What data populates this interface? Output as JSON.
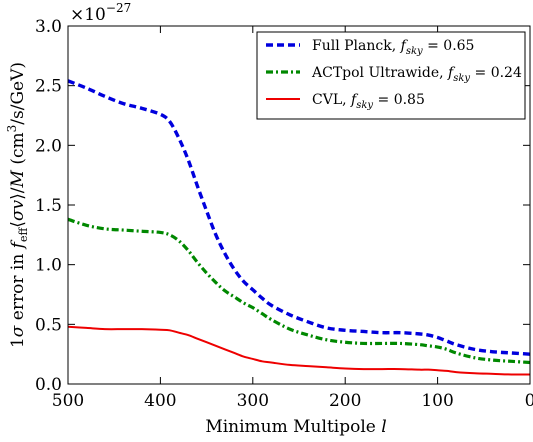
{
  "chart_data": {
    "type": "line",
    "xlabel": "Minimum Multipole l",
    "ylabel": "1σ error in f_eff⟨σv⟩/M (cm³/s/GeV)",
    "y_multiplier_label": "×10^-27",
    "x_inverted": true,
    "xlim": [
      500,
      0
    ],
    "ylim": [
      0.0,
      3.0
    ],
    "grid": false,
    "legend_position": "top-right",
    "x_ticks": [
      500,
      400,
      300,
      200,
      100,
      0
    ],
    "y_ticks": [
      0.0,
      0.5,
      1.0,
      1.5,
      2.0,
      2.5,
      3.0
    ],
    "x_tick_labels": [
      "500",
      "400",
      "300",
      "200",
      "100",
      "0"
    ],
    "y_tick_labels": [
      "0.0",
      "0.5",
      "1.0",
      "1.5",
      "2.0",
      "2.5",
      "3.0"
    ],
    "series": [
      {
        "name": "Full Planck, f_sky = 0.65",
        "name_prefix": "Full Planck, ",
        "fsky_value": " = 0.65",
        "color": "#0000dd",
        "style": "dashed",
        "x": [
          500,
          480,
          460,
          440,
          420,
          400,
          390,
          380,
          370,
          360,
          350,
          340,
          330,
          320,
          310,
          300,
          290,
          280,
          260,
          240,
          220,
          200,
          180,
          160,
          140,
          120,
          110,
          100,
          90,
          80,
          60,
          40,
          20,
          0
        ],
        "y": [
          2.54,
          2.48,
          2.41,
          2.35,
          2.31,
          2.26,
          2.2,
          2.06,
          1.88,
          1.66,
          1.45,
          1.25,
          1.09,
          0.96,
          0.86,
          0.79,
          0.72,
          0.66,
          0.58,
          0.52,
          0.47,
          0.45,
          0.44,
          0.43,
          0.43,
          0.42,
          0.41,
          0.39,
          0.36,
          0.33,
          0.29,
          0.27,
          0.26,
          0.25
        ]
      },
      {
        "name": "ACTpol Ultrawide, f_sky = 0.24",
        "name_prefix": "ACTpol Ultrawide, ",
        "fsky_value": " = 0.24",
        "color": "#008800",
        "style": "dashdot",
        "x": [
          500,
          480,
          460,
          440,
          420,
          400,
          390,
          380,
          370,
          360,
          350,
          340,
          330,
          320,
          310,
          300,
          290,
          280,
          260,
          240,
          220,
          200,
          180,
          160,
          140,
          120,
          110,
          100,
          90,
          80,
          60,
          40,
          20,
          0
        ],
        "y": [
          1.38,
          1.33,
          1.3,
          1.29,
          1.28,
          1.27,
          1.25,
          1.2,
          1.12,
          1.02,
          0.93,
          0.85,
          0.78,
          0.73,
          0.68,
          0.64,
          0.59,
          0.54,
          0.46,
          0.41,
          0.37,
          0.35,
          0.34,
          0.34,
          0.34,
          0.33,
          0.32,
          0.31,
          0.29,
          0.26,
          0.22,
          0.2,
          0.19,
          0.18
        ]
      },
      {
        "name": "CVL, f_sky = 0.85",
        "name_prefix": "CVL, ",
        "fsky_value": " = 0.85",
        "color": "#ee0000",
        "style": "solid",
        "x": [
          500,
          480,
          460,
          440,
          420,
          400,
          390,
          380,
          370,
          360,
          350,
          340,
          330,
          320,
          310,
          300,
          290,
          280,
          260,
          240,
          220,
          200,
          180,
          160,
          140,
          120,
          110,
          100,
          90,
          80,
          60,
          40,
          20,
          0
        ],
        "y": [
          0.48,
          0.47,
          0.46,
          0.46,
          0.46,
          0.455,
          0.45,
          0.43,
          0.41,
          0.38,
          0.35,
          0.32,
          0.29,
          0.26,
          0.23,
          0.21,
          0.19,
          0.18,
          0.16,
          0.15,
          0.14,
          0.13,
          0.125,
          0.125,
          0.125,
          0.12,
          0.12,
          0.115,
          0.11,
          0.1,
          0.09,
          0.085,
          0.08,
          0.08
        ]
      }
    ]
  }
}
